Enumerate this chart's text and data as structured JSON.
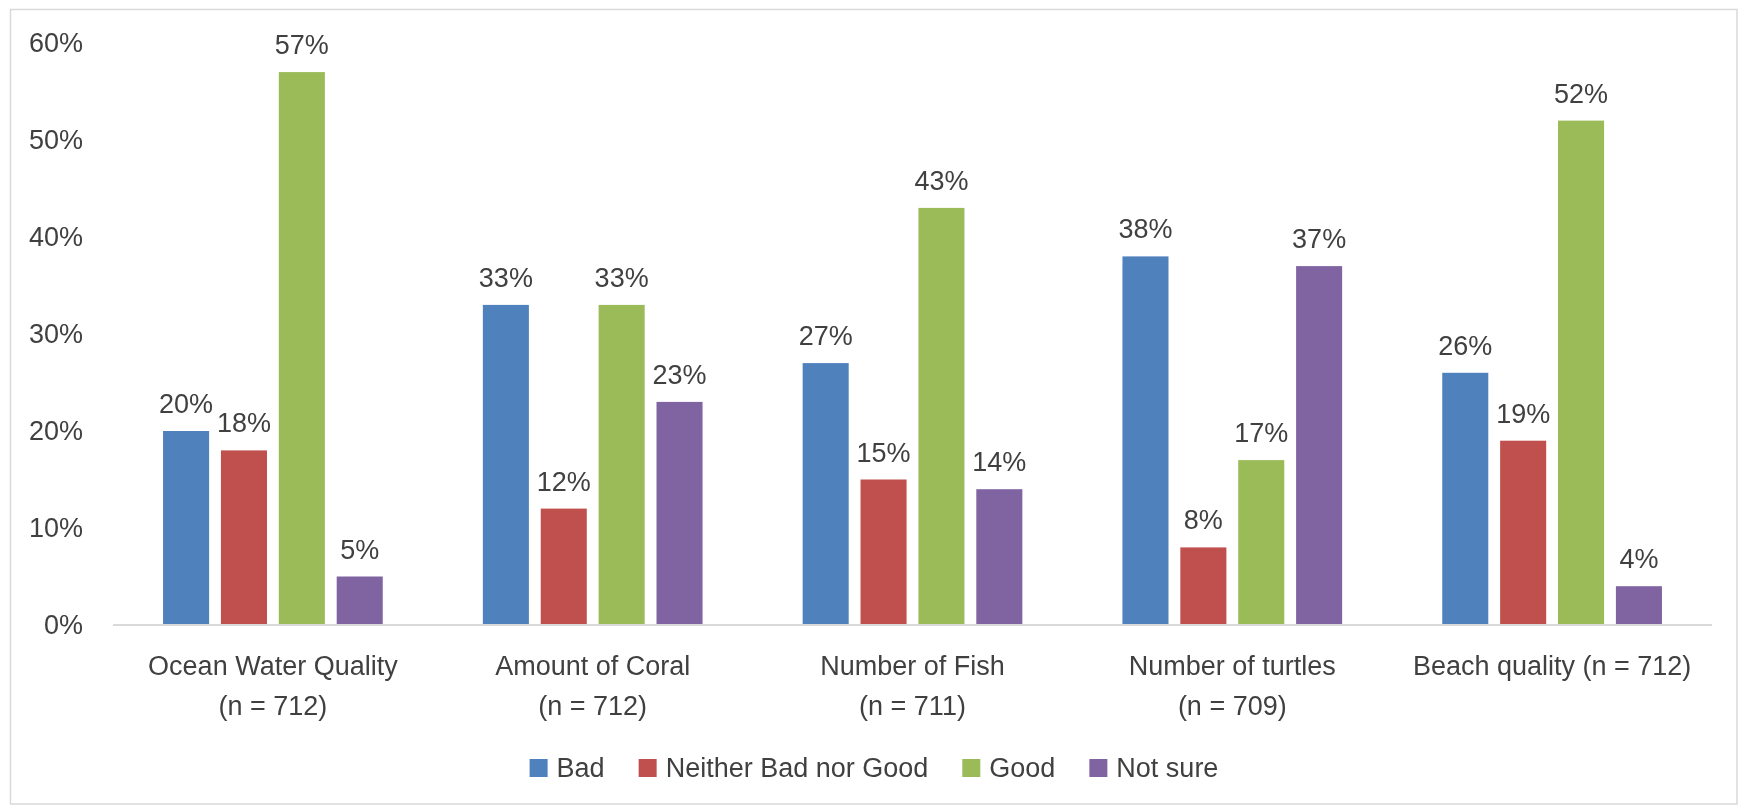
{
  "chart_data": {
    "type": "bar",
    "categories": [
      "Ocean Water Quality (n = 712)",
      "Amount of Coral (n = 712)",
      "Number of Fish (n = 711)",
      "Number of turtles (n = 709)",
      "Beach quality (n = 712)"
    ],
    "series": [
      {
        "name": "Bad",
        "color": "#4f81bd",
        "values": [
          20,
          33,
          27,
          38,
          26
        ],
        "value_labels": [
          "20%",
          "33%",
          "27%",
          "38%",
          "26%"
        ]
      },
      {
        "name": "Neither Bad nor Good",
        "color": "#c0504d",
        "values": [
          18,
          12,
          15,
          8,
          19
        ],
        "value_labels": [
          "18%",
          "12%",
          "15%",
          "8%",
          "19%"
        ]
      },
      {
        "name": "Good",
        "color": "#9bbb59",
        "values": [
          57,
          33,
          43,
          17,
          52
        ],
        "value_labels": [
          "57%",
          "33%",
          "43%",
          "17%",
          "52%"
        ]
      },
      {
        "name": "Not sure",
        "color": "#8064a2",
        "values": [
          5,
          23,
          14,
          37,
          4
        ],
        "value_labels": [
          "5%",
          "23%",
          "14%",
          "37%",
          "4%"
        ]
      }
    ],
    "ylim": [
      0,
      60
    ],
    "yticks": [
      {
        "value": 0,
        "label": "0%"
      },
      {
        "value": 10,
        "label": "10%"
      },
      {
        "value": 20,
        "label": "20%"
      },
      {
        "value": 30,
        "label": "30%"
      },
      {
        "value": 40,
        "label": "40%"
      },
      {
        "value": 50,
        "label": "50%"
      },
      {
        "value": 60,
        "label": "60%"
      }
    ],
    "legend": "bottom"
  }
}
